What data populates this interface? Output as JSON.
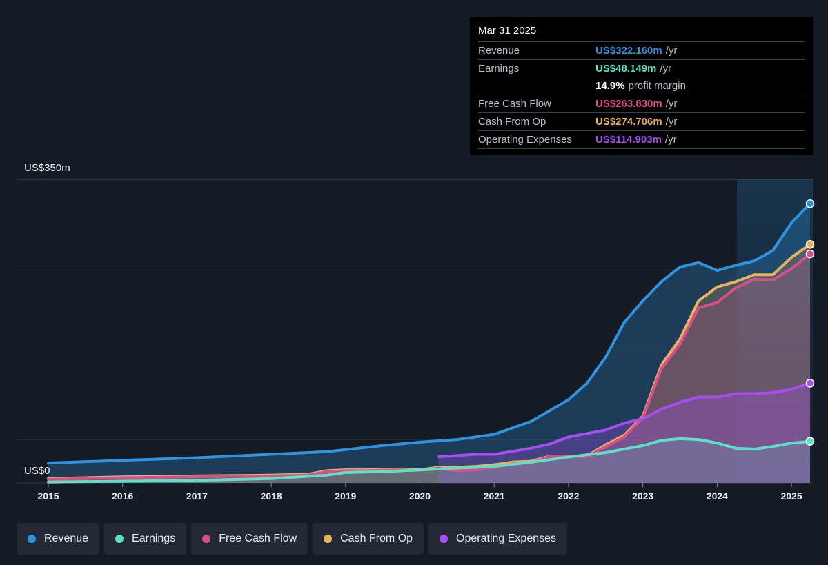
{
  "tooltip": {
    "date": "Mar 31 2025",
    "rows": [
      {
        "label": "Revenue",
        "value": "US$322.160m",
        "unit": "/yr",
        "color": "#2f93e0"
      },
      {
        "label": "Earnings",
        "value": "US$48.149m",
        "unit": "/yr",
        "color": "#5ee0c8"
      },
      {
        "label": "",
        "value": "14.9%",
        "unit": "profit margin",
        "color": "#ffffff"
      },
      {
        "label": "Free Cash Flow",
        "value": "US$263.830m",
        "unit": "/yr",
        "color": "#d94f8c"
      },
      {
        "label": "Cash From Op",
        "value": "US$274.706m",
        "unit": "/yr",
        "color": "#e9b25f"
      },
      {
        "label": "Operating Expenses",
        "value": "US$114.903m",
        "unit": "/yr",
        "color": "#a84df0"
      }
    ]
  },
  "legend": [
    {
      "label": "Revenue",
      "color": "#2f93e0"
    },
    {
      "label": "Earnings",
      "color": "#5ee0c8"
    },
    {
      "label": "Free Cash Flow",
      "color": "#d94f8c"
    },
    {
      "label": "Cash From Op",
      "color": "#e9b25f"
    },
    {
      "label": "Operating Expenses",
      "color": "#a84df0"
    }
  ],
  "chart_data": {
    "type": "area",
    "ylabel_top": "US$350m",
    "ylabel_bottom": "US$0",
    "ylim": [
      0,
      350
    ],
    "xlim": [
      2015,
      2025.25
    ],
    "x_ticks": [
      "2015",
      "2016",
      "2017",
      "2018",
      "2019",
      "2020",
      "2021",
      "2022",
      "2023",
      "2024",
      "2025"
    ],
    "grid": true,
    "legend_position": "bottom",
    "series": [
      {
        "name": "Revenue",
        "color": "#2f93e0",
        "points": [
          [
            2015,
            23
          ],
          [
            2016,
            26
          ],
          [
            2017,
            29
          ],
          [
            2018,
            33
          ],
          [
            2018.75,
            36
          ],
          [
            2019.5,
            43
          ],
          [
            2020,
            47
          ],
          [
            2020.5,
            50
          ],
          [
            2021,
            56
          ],
          [
            2021.5,
            71
          ],
          [
            2022,
            96
          ],
          [
            2022.25,
            115
          ],
          [
            2022.5,
            145
          ],
          [
            2022.75,
            185
          ],
          [
            2023,
            210
          ],
          [
            2023.25,
            232
          ],
          [
            2023.5,
            249
          ],
          [
            2023.75,
            254
          ],
          [
            2024,
            245
          ],
          [
            2024.25,
            251
          ],
          [
            2024.5,
            256
          ],
          [
            2024.75,
            268
          ],
          [
            2025,
            300
          ],
          [
            2025.25,
            322
          ]
        ]
      },
      {
        "name": "Earnings",
        "color": "#5ee0c8",
        "points": [
          [
            2015,
            1
          ],
          [
            2016,
            2
          ],
          [
            2017,
            3
          ],
          [
            2018,
            5
          ],
          [
            2018.75,
            9
          ],
          [
            2019,
            12
          ],
          [
            2019.5,
            13
          ],
          [
            2020,
            15
          ],
          [
            2020.5,
            17
          ],
          [
            2021,
            19
          ],
          [
            2021.5,
            24
          ],
          [
            2022,
            30
          ],
          [
            2022.5,
            35
          ],
          [
            2023,
            43
          ],
          [
            2023.25,
            49
          ],
          [
            2023.5,
            51
          ],
          [
            2023.75,
            50
          ],
          [
            2024,
            46
          ],
          [
            2024.25,
            40
          ],
          [
            2024.5,
            39
          ],
          [
            2024.75,
            42
          ],
          [
            2025,
            46
          ],
          [
            2025.25,
            48
          ]
        ]
      },
      {
        "name": "Free Cash Flow",
        "color": "#d94f8c",
        "points": [
          [
            2015,
            4
          ],
          [
            2016,
            6
          ],
          [
            2017,
            7
          ],
          [
            2018,
            8
          ],
          [
            2018.5,
            9
          ],
          [
            2018.75,
            13
          ],
          [
            2019,
            14
          ],
          [
            2019.25,
            14
          ],
          [
            2019.75,
            15
          ],
          [
            2020,
            14
          ],
          [
            2020.25,
            17
          ],
          [
            2020.5,
            14
          ],
          [
            2020.75,
            15
          ],
          [
            2021,
            18
          ],
          [
            2021.25,
            22
          ],
          [
            2021.5,
            23
          ],
          [
            2021.75,
            31
          ],
          [
            2022,
            31
          ],
          [
            2022.25,
            30
          ],
          [
            2022.5,
            42
          ],
          [
            2022.75,
            53
          ],
          [
            2023,
            75
          ],
          [
            2023.25,
            132
          ],
          [
            2023.5,
            160
          ],
          [
            2023.75,
            202
          ],
          [
            2024,
            208
          ],
          [
            2024.25,
            225
          ],
          [
            2024.5,
            235
          ],
          [
            2024.75,
            234
          ],
          [
            2025,
            247
          ],
          [
            2025.25,
            264
          ]
        ]
      },
      {
        "name": "Cash From Op",
        "color": "#e9b25f",
        "points": [
          [
            2015,
            5
          ],
          [
            2016,
            7
          ],
          [
            2017,
            8
          ],
          [
            2018,
            9
          ],
          [
            2018.5,
            10
          ],
          [
            2018.75,
            14
          ],
          [
            2019,
            15
          ],
          [
            2019.25,
            15
          ],
          [
            2019.75,
            16
          ],
          [
            2020,
            15
          ],
          [
            2020.25,
            18
          ],
          [
            2020.5,
            18
          ],
          [
            2020.75,
            19
          ],
          [
            2021,
            21
          ],
          [
            2021.25,
            24
          ],
          [
            2021.5,
            25
          ],
          [
            2021.75,
            31
          ],
          [
            2022,
            31
          ],
          [
            2022.25,
            31
          ],
          [
            2022.5,
            44
          ],
          [
            2022.75,
            55
          ],
          [
            2023,
            77
          ],
          [
            2023.25,
            136
          ],
          [
            2023.5,
            166
          ],
          [
            2023.75,
            210
          ],
          [
            2024,
            226
          ],
          [
            2024.25,
            232
          ],
          [
            2024.5,
            240
          ],
          [
            2024.75,
            240
          ],
          [
            2025,
            260
          ],
          [
            2025.25,
            275
          ]
        ]
      },
      {
        "name": "Operating Expenses",
        "color": "#a84df0",
        "points": [
          [
            2020.25,
            30
          ],
          [
            2020.75,
            33
          ],
          [
            2021,
            33
          ],
          [
            2021.5,
            40
          ],
          [
            2021.75,
            45
          ],
          [
            2022,
            53
          ],
          [
            2022.5,
            61
          ],
          [
            2022.75,
            69
          ],
          [
            2023,
            74
          ],
          [
            2023.25,
            85
          ],
          [
            2023.5,
            93
          ],
          [
            2023.75,
            99
          ],
          [
            2024,
            99
          ],
          [
            2024.25,
            103
          ],
          [
            2024.5,
            103
          ],
          [
            2024.75,
            104
          ],
          [
            2025,
            108
          ],
          [
            2025.25,
            115
          ]
        ]
      }
    ]
  }
}
